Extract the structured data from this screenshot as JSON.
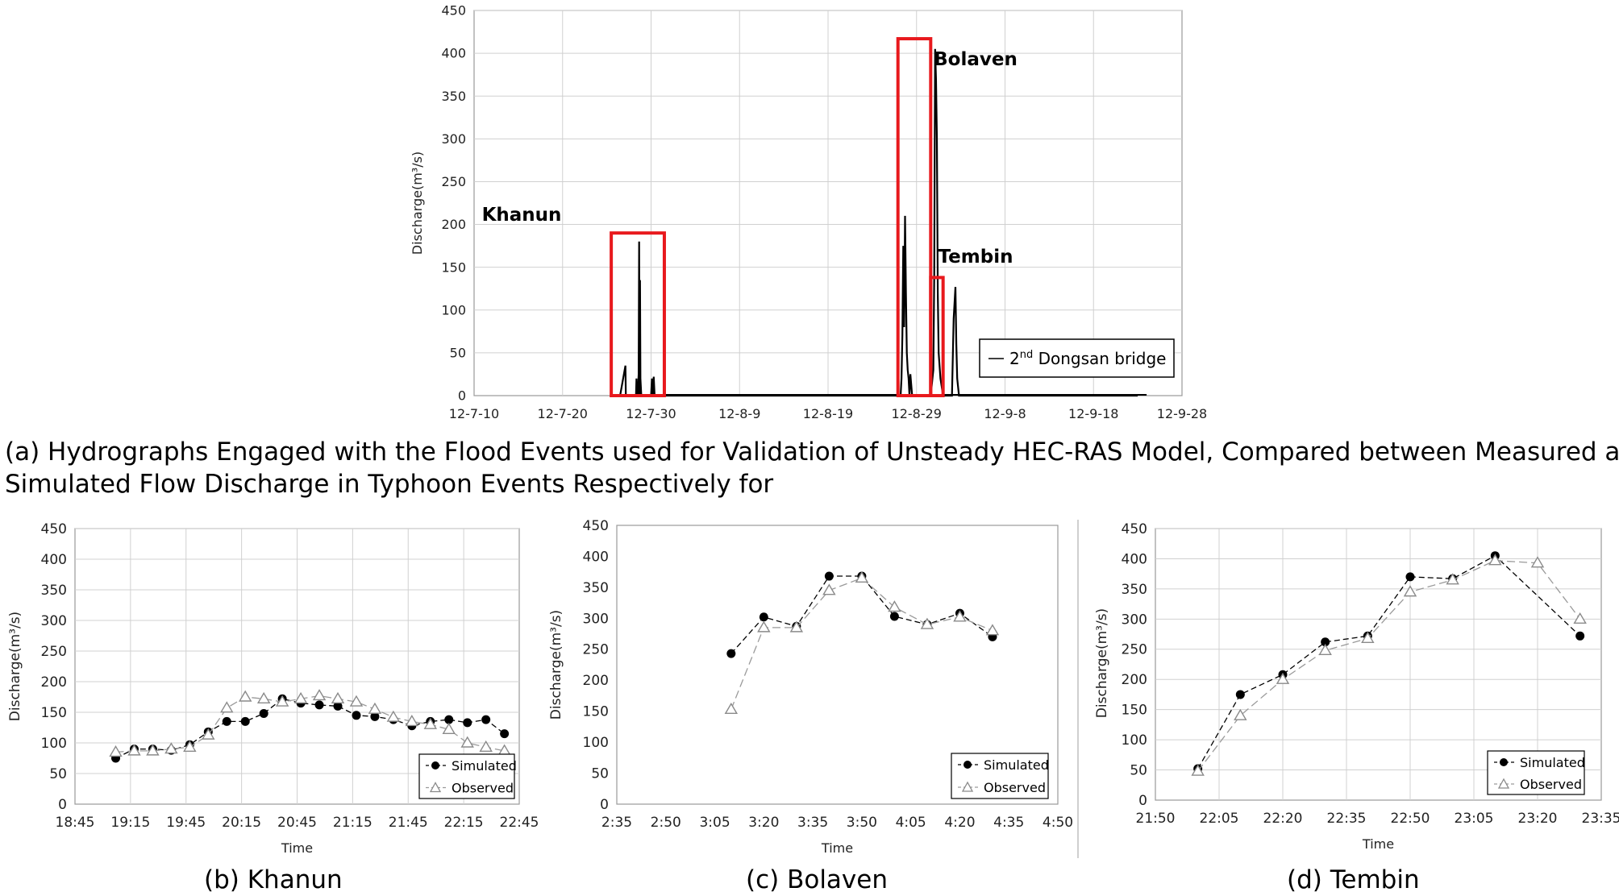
{
  "captions": {
    "a_line1": "(a) Hydrographs Engaged with the Flood Events used for Validation of Unsteady HEC-RAS Model, Compared between Measured and",
    "a_line2": "Simulated Flow Discharge in Typhoon Events Respectively for",
    "b": "(b) Khanun",
    "c": "(c) Bolaven",
    "d": "(d) Tembin"
  },
  "chart_data": [
    {
      "id": "a",
      "type": "line",
      "xlabel": "",
      "ylabel": "Discharge(m³/s)",
      "ylim": [
        0,
        450
      ],
      "yticks": [
        0,
        50,
        100,
        150,
        200,
        250,
        300,
        350,
        400,
        450
      ],
      "xticks": [
        "12-7-10",
        "12-7-20",
        "12-7-30",
        "12-8-9",
        "12-8-19",
        "12-8-29",
        "12-9-8",
        "12-9-18",
        "12-9-28"
      ],
      "grid": true,
      "legend": {
        "position": "bottom-right",
        "label_pre": "2",
        "label_sup": "nd",
        "label_post": " Dongsan bridge"
      },
      "series": [
        {
          "name": "2nd Dongsan bridge",
          "x_days": [
            16.5,
            17.1,
            17.15,
            17.2,
            18.3,
            18.35,
            18.4,
            18.5,
            18.6,
            18.65,
            18.7,
            18.75,
            18.8,
            18.9,
            20.0,
            20.1,
            20.2,
            20.3,
            20.4,
            25.0,
            48.2,
            48.3,
            48.4,
            48.5,
            48.6,
            48.7,
            48.8,
            48.9,
            49.0,
            49.1,
            49.2,
            49.3,
            49.5,
            49.6,
            49.7,
            51.5,
            51.7,
            51.9,
            52.0,
            52.1,
            52.2,
            52.3,
            52.4,
            52.5,
            52.7,
            53.0,
            54.0,
            54.2,
            54.4,
            54.5,
            54.6,
            54.8,
            55.0,
            60.0,
            75.0
          ],
          "y": [
            0,
            35,
            0,
            0,
            0,
            20,
            0,
            0,
            25,
            180,
            0,
            135,
            20,
            0,
            0,
            20,
            0,
            22,
            0,
            0,
            0,
            20,
            70,
            175,
            80,
            210,
            120,
            50,
            30,
            20,
            0,
            25,
            0,
            0,
            0,
            0,
            10,
            30,
            140,
            405,
            370,
            300,
            120,
            50,
            20,
            0,
            0,
            90,
            127,
            60,
            20,
            0,
            0,
            0,
            0
          ]
        }
      ],
      "annotations": [
        {
          "label": "Khanun"
        },
        {
          "label": "Bolaven"
        },
        {
          "label": "Tembin"
        }
      ]
    },
    {
      "id": "b",
      "type": "line",
      "xlabel": "Time",
      "ylabel": "Discharge(m³/s)",
      "ylim": [
        0,
        450
      ],
      "yticks": [
        0,
        50,
        100,
        150,
        200,
        250,
        300,
        350,
        400,
        450
      ],
      "xticks": [
        "18:45",
        "19:15",
        "19:45",
        "20:15",
        "20:45",
        "21:15",
        "21:45",
        "22:15",
        "22:45"
      ],
      "grid": true,
      "legend": {
        "position": "bottom-right"
      },
      "x_minutes": [
        1147,
        1157,
        1167,
        1177,
        1187,
        1197,
        1207,
        1217,
        1227,
        1237,
        1247,
        1257,
        1267,
        1277,
        1287,
        1297,
        1307,
        1317,
        1327,
        1337,
        1347,
        1357
      ],
      "series": [
        {
          "name": "Simulated",
          "y": [
            75,
            90,
            90,
            88,
            97,
            118,
            135,
            135,
            148,
            172,
            165,
            162,
            160,
            145,
            143,
            138,
            128,
            135,
            138,
            133,
            138,
            115
          ]
        },
        {
          "name": "Observed",
          "y": [
            85,
            87,
            87,
            90,
            93,
            113,
            157,
            175,
            172,
            167,
            172,
            177,
            172,
            167,
            155,
            142,
            135,
            130,
            122,
            100,
            93,
            87
          ]
        }
      ]
    },
    {
      "id": "c",
      "type": "line",
      "xlabel": "Time",
      "ylabel": "Discharge(m³/s)",
      "ylim": [
        0,
        450
      ],
      "yticks": [
        0,
        50,
        100,
        150,
        200,
        250,
        300,
        350,
        400,
        450
      ],
      "xticks": [
        "2:35",
        "2:50",
        "3:05",
        "3:20",
        "3:35",
        "3:50",
        "4:05",
        "4:20",
        "4:35",
        "4:50"
      ],
      "grid": false,
      "legend": {
        "position": "bottom-right"
      },
      "x_minutes": [
        190,
        200,
        210,
        220,
        230,
        240,
        250,
        260,
        270
      ],
      "series": [
        {
          "name": "Simulated",
          "y": [
            243,
            302,
            287,
            368,
            368,
            303,
            290,
            308,
            270
          ]
        },
        {
          "name": "Observed",
          "y": [
            153,
            285,
            285,
            345,
            365,
            318,
            290,
            302,
            280
          ]
        }
      ]
    },
    {
      "id": "d",
      "type": "line",
      "xlabel": "Time",
      "ylabel": "Discharge(m³/s)",
      "ylim": [
        0,
        450
      ],
      "yticks": [
        0,
        50,
        100,
        150,
        200,
        250,
        300,
        350,
        400,
        450
      ],
      "xticks": [
        "21:50",
        "22:05",
        "22:20",
        "22:35",
        "22:50",
        "23:05",
        "23:20",
        "23:35"
      ],
      "grid": true,
      "legend": {
        "position": "bottom-right"
      },
      "x_minutes": [
        1320,
        1330,
        1340,
        1350,
        1360,
        1370,
        1380,
        1390,
        1400,
        1410
      ],
      "series": [
        {
          "name": "Simulated",
          "y": [
            52,
            175,
            208,
            262,
            272,
            370,
            367,
            405,
            null,
            272
          ]
        },
        {
          "name": "Observed",
          "y": [
            48,
            140,
            200,
            248,
            268,
            345,
            365,
            397,
            393,
            300
          ]
        }
      ]
    }
  ]
}
